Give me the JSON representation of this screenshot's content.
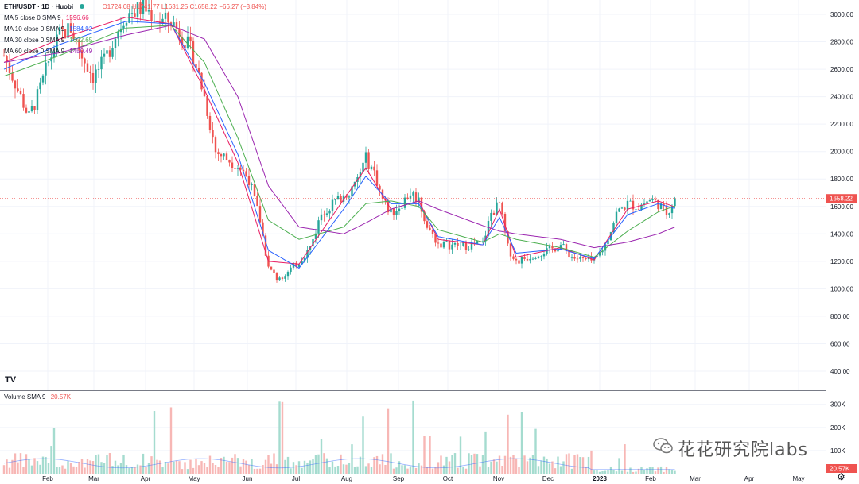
{
  "header": {
    "symbol": "ETH/USDT · 1D · Huobi",
    "ohlc": "O1724.08 H1741.77 L1631.25 C1658.22 −66.27 (−3.84%)"
  },
  "indicators": [
    {
      "label": "MA 5 close 0 SMA 9",
      "value": "1596.66",
      "color": "#e91e63"
    },
    {
      "label": "MA 10 close 0 SMA 9",
      "value": "1584.92",
      "color": "#2962ff"
    },
    {
      "label": "MA 30 close 0 SMA 9",
      "value": "1602.65",
      "color": "#4caf50"
    },
    {
      "label": "MA 60 close 0 SMA 9",
      "value": "1450.49",
      "color": "#9c27b0"
    }
  ],
  "volume_legend": {
    "label": "Volume SMA 9",
    "value": "20.57K"
  },
  "price_label": "1658.22",
  "volume_label": "20.57K",
  "watermark": "花花研究院labs",
  "logo": "TV",
  "colors": {
    "up": "#26a69a",
    "down": "#ef5350",
    "ma5": "#e91e63",
    "ma10": "#2962ff",
    "ma30": "#4caf50",
    "ma60": "#9c27b0"
  },
  "chart_data": {
    "type": "candlestick",
    "y_ticks": [
      "3000.00",
      "2800.00",
      "2600.00",
      "2400.00",
      "2200.00",
      "2000.00",
      "1800.00",
      "1600.00",
      "1400.00",
      "1200.00",
      "1000.00",
      "800.00",
      "600.00",
      "400.00"
    ],
    "ylim": [
      300,
      3080
    ],
    "volume_ticks": [
      "300K",
      "200K",
      "100K"
    ],
    "x_labels": [
      "Feb",
      "Mar",
      "Apr",
      "May",
      "Jun",
      "Jul",
      "Aug",
      "Sep",
      "Oct",
      "Nov",
      "Dec",
      "2023",
      "Feb",
      "Mar",
      "Apr",
      "May"
    ],
    "price_path": [
      [
        0,
        2700
      ],
      [
        3,
        2550
      ],
      [
        6,
        2400
      ],
      [
        9,
        2250
      ],
      [
        12,
        2400
      ],
      [
        16,
        2650
      ],
      [
        20,
        2850
      ],
      [
        24,
        2900
      ],
      [
        28,
        2700
      ],
      [
        32,
        2550
      ],
      [
        36,
        2650
      ],
      [
        40,
        2850
      ],
      [
        44,
        3000
      ],
      [
        50,
        3050
      ],
      [
        56,
        2950
      ],
      [
        60,
        2950
      ],
      [
        64,
        2850
      ],
      [
        68,
        2700
      ],
      [
        72,
        2400
      ],
      [
        76,
        2000
      ],
      [
        80,
        1950
      ],
      [
        84,
        1900
      ],
      [
        88,
        1800
      ],
      [
        92,
        1500
      ],
      [
        95,
        1150
      ],
      [
        98,
        1080
      ],
      [
        102,
        1120
      ],
      [
        106,
        1200
      ],
      [
        110,
        1300
      ],
      [
        114,
        1550
      ],
      [
        118,
        1620
      ],
      [
        122,
        1680
      ],
      [
        126,
        1750
      ],
      [
        130,
        1950
      ],
      [
        133,
        1850
      ],
      [
        136,
        1650
      ],
      [
        139,
        1550
      ],
      [
        142,
        1600
      ],
      [
        146,
        1700
      ],
      [
        149,
        1650
      ],
      [
        152,
        1450
      ],
      [
        156,
        1330
      ],
      [
        160,
        1320
      ],
      [
        164,
        1310
      ],
      [
        168,
        1320
      ],
      [
        172,
        1330
      ],
      [
        175,
        1550
      ],
      [
        178,
        1620
      ],
      [
        181,
        1300
      ],
      [
        184,
        1200
      ],
      [
        188,
        1230
      ],
      [
        192,
        1260
      ],
      [
        196,
        1280
      ],
      [
        200,
        1320
      ],
      [
        204,
        1230
      ],
      [
        208,
        1210
      ],
      [
        212,
        1200
      ],
      [
        216,
        1320
      ],
      [
        220,
        1550
      ],
      [
        224,
        1620
      ],
      [
        228,
        1600
      ],
      [
        232,
        1650
      ],
      [
        235,
        1620
      ],
      [
        238,
        1550
      ],
      [
        241,
        1658
      ]
    ],
    "ma5_path": [
      [
        0,
        2650
      ],
      [
        20,
        2820
      ],
      [
        44,
        2980
      ],
      [
        60,
        2930
      ],
      [
        72,
        2450
      ],
      [
        84,
        1920
      ],
      [
        95,
        1200
      ],
      [
        106,
        1180
      ],
      [
        122,
        1650
      ],
      [
        130,
        1880
      ],
      [
        139,
        1580
      ],
      [
        149,
        1640
      ],
      [
        156,
        1360
      ],
      [
        172,
        1320
      ],
      [
        178,
        1580
      ],
      [
        184,
        1230
      ],
      [
        200,
        1300
      ],
      [
        212,
        1210
      ],
      [
        224,
        1580
      ],
      [
        235,
        1640
      ],
      [
        241,
        1597
      ]
    ],
    "ma10_path": [
      [
        0,
        2600
      ],
      [
        20,
        2780
      ],
      [
        44,
        2950
      ],
      [
        60,
        2930
      ],
      [
        72,
        2500
      ],
      [
        84,
        1980
      ],
      [
        95,
        1280
      ],
      [
        106,
        1150
      ],
      [
        122,
        1580
      ],
      [
        130,
        1820
      ],
      [
        139,
        1620
      ],
      [
        149,
        1620
      ],
      [
        156,
        1380
      ],
      [
        172,
        1320
      ],
      [
        178,
        1520
      ],
      [
        184,
        1260
      ],
      [
        200,
        1290
      ],
      [
        212,
        1220
      ],
      [
        224,
        1540
      ],
      [
        235,
        1620
      ],
      [
        241,
        1585
      ]
    ],
    "ma30_path": [
      [
        0,
        2550
      ],
      [
        20,
        2700
      ],
      [
        44,
        2900
      ],
      [
        60,
        2920
      ],
      [
        72,
        2650
      ],
      [
        84,
        2100
      ],
      [
        95,
        1500
      ],
      [
        106,
        1360
      ],
      [
        122,
        1450
      ],
      [
        130,
        1620
      ],
      [
        139,
        1640
      ],
      [
        149,
        1600
      ],
      [
        156,
        1430
      ],
      [
        172,
        1340
      ],
      [
        178,
        1400
      ],
      [
        184,
        1360
      ],
      [
        200,
        1300
      ],
      [
        212,
        1230
      ],
      [
        224,
        1420
      ],
      [
        235,
        1560
      ],
      [
        241,
        1603
      ]
    ],
    "ma60_path": [
      [
        0,
        2650
      ],
      [
        20,
        2720
      ],
      [
        44,
        2850
      ],
      [
        60,
        2920
      ],
      [
        72,
        2820
      ],
      [
        84,
        2400
      ],
      [
        95,
        1750
      ],
      [
        106,
        1450
      ],
      [
        122,
        1400
      ],
      [
        130,
        1480
      ],
      [
        139,
        1580
      ],
      [
        149,
        1640
      ],
      [
        156,
        1580
      ],
      [
        172,
        1460
      ],
      [
        178,
        1420
      ],
      [
        184,
        1400
      ],
      [
        200,
        1360
      ],
      [
        212,
        1300
      ],
      [
        224,
        1340
      ],
      [
        235,
        1400
      ],
      [
        241,
        1450
      ]
    ]
  }
}
